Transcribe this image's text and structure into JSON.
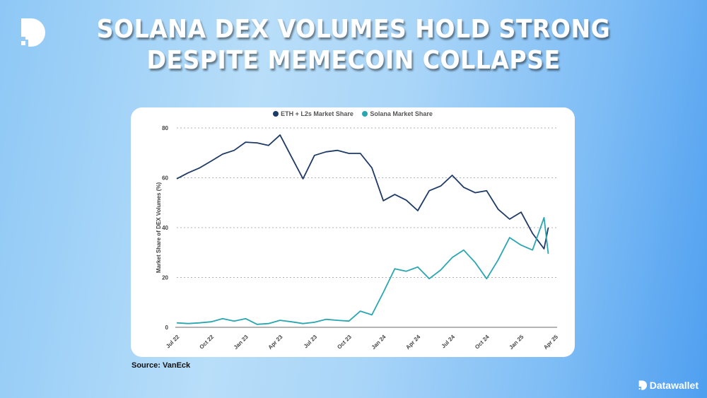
{
  "header": {
    "title_line1": "SOLANA DEX VOLUMES HOLD STRONG",
    "title_line2": "DESPITE MEMECOIN COLLAPSE"
  },
  "footer": {
    "source": "Source: VanEck",
    "brand": "Datawallet"
  },
  "colors": {
    "eth": "#1e3a66",
    "sol": "#2aa6b0",
    "grid": "#b0b0b0",
    "axis": "#888888"
  },
  "chart_data": {
    "type": "line",
    "title": "",
    "xlabel": "",
    "ylabel": "Market Share of DEX Volumes (%)",
    "ylim": [
      0,
      80
    ],
    "yticks": [
      0,
      20,
      40,
      60,
      80
    ],
    "grid": "horizontal dotted",
    "legend_position": "top-center",
    "x_tick_labels": [
      "Jul 22",
      "Oct 22",
      "Jan 23",
      "Apr 23",
      "Jul 23",
      "Oct 23",
      "Jan 24",
      "Apr 24",
      "Jul 24",
      "Oct 24",
      "Jan 25",
      "Apr 25"
    ],
    "x": [
      "Jul 22",
      "Aug 22",
      "Sep 22",
      "Oct 22",
      "Nov 22",
      "Dec 22",
      "Jan 23",
      "Feb 23",
      "Mar 23",
      "Apr 23",
      "May 23",
      "Jun 23",
      "Jul 23",
      "Aug 23",
      "Sep 23",
      "Oct 23",
      "Nov 23",
      "Dec 23",
      "Jan 24",
      "Feb 24",
      "Mar 24",
      "Apr 24",
      "May 24",
      "Jun 24",
      "Jul 24",
      "Aug 24",
      "Sep 24",
      "Oct 24",
      "Nov 24",
      "Dec 24",
      "Jan 25",
      "Feb 25",
      "Mar 25",
      "Mar 25 (end)"
    ],
    "series": [
      {
        "name": "ETH + L2s Market Share",
        "values": [
          59.6,
          62,
          64,
          66.7,
          69.5,
          71,
          74.3,
          74,
          73,
          77.2,
          68.4,
          59.6,
          69,
          70.4,
          71,
          69.8,
          69.8,
          64,
          50.8,
          53.3,
          51,
          46.8,
          54.8,
          56.7,
          61,
          56.2,
          54,
          54.8,
          47.4,
          43.4,
          46.2,
          37.7,
          31.5,
          40
        ]
      },
      {
        "name": "Solana Market Share",
        "values": [
          1.8,
          1.5,
          1.8,
          2.2,
          3.5,
          2.5,
          3.5,
          1.2,
          1.5,
          2.8,
          2.2,
          1.5,
          2,
          3.2,
          2.8,
          2.5,
          6.5,
          5,
          14,
          23.5,
          22.5,
          24.2,
          19.5,
          23,
          28,
          31,
          26,
          19.5,
          27,
          36,
          33,
          31,
          44,
          29.5
        ]
      }
    ]
  }
}
